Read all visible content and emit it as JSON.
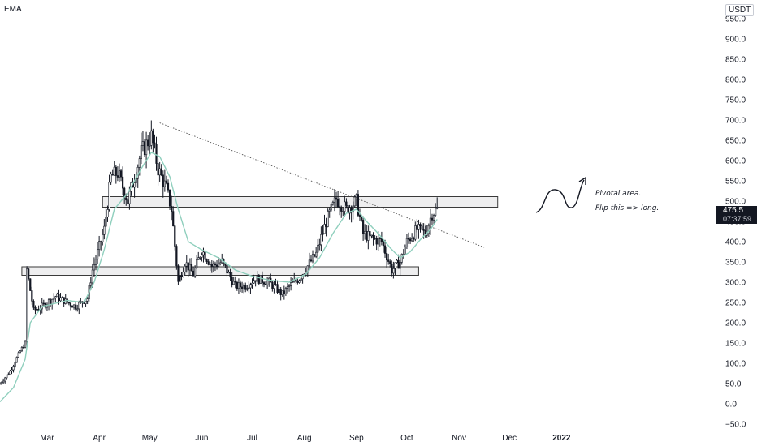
{
  "indicator": "EMA",
  "currency": "USDT",
  "last_price": {
    "value": "475.5",
    "countdown": "07:37:59"
  },
  "annotations": {
    "line1": "Pivotal area.",
    "line2": "Flip this => long."
  },
  "colors": {
    "up": "#131722",
    "down": "#131722",
    "ema": "#8fcfbd",
    "zone_fill": "#e8e8ea",
    "zone_stroke": "#3a3a3a",
    "trendline": "#555555"
  },
  "chart_data": {
    "type": "candlestick",
    "ylim": [
      -60,
      980
    ],
    "y_ticks": [
      "950.0",
      "900.0",
      "850.0",
      "800.0",
      "750.0",
      "700.0",
      "650.0",
      "600.0",
      "550.0",
      "500.0",
      "450.0",
      "400.0",
      "350.0",
      "300.0",
      "250.0",
      "200.0",
      "150.0",
      "100.0",
      "50.0",
      "0.0",
      "−50.0"
    ],
    "y_tick_values": [
      950,
      900,
      850,
      800,
      750,
      700,
      650,
      600,
      550,
      500,
      450,
      400,
      350,
      300,
      250,
      200,
      150,
      100,
      50,
      0,
      -50
    ],
    "x_ticks": [
      {
        "label": "Mar",
        "day": 28
      },
      {
        "label": "Apr",
        "day": 59
      },
      {
        "label": "May",
        "day": 89
      },
      {
        "label": "Jun",
        "day": 120
      },
      {
        "label": "Jul",
        "day": 150
      },
      {
        "label": "Aug",
        "day": 181
      },
      {
        "label": "Sep",
        "day": 212
      },
      {
        "label": "Oct",
        "day": 242
      },
      {
        "label": "Nov",
        "day": 273
      },
      {
        "label": "Dec",
        "day": 303
      },
      {
        "label": "2022",
        "day": 334
      }
    ],
    "x_range": [
      0,
      359
    ],
    "price_keyframes": [
      [
        0,
        50
      ],
      [
        6,
        80
      ],
      [
        12,
        130
      ],
      [
        15,
        150
      ],
      [
        16,
        330
      ],
      [
        20,
        230
      ],
      [
        25,
        240
      ],
      [
        33,
        265
      ],
      [
        45,
        240
      ],
      [
        52,
        260
      ],
      [
        55,
        330
      ],
      [
        62,
        430
      ],
      [
        66,
        560
      ],
      [
        70,
        570
      ],
      [
        76,
        500
      ],
      [
        84,
        620
      ],
      [
        90,
        660
      ],
      [
        94,
        580
      ],
      [
        99,
        530
      ],
      [
        102,
        480
      ],
      [
        106,
        300
      ],
      [
        110,
        350
      ],
      [
        115,
        320
      ],
      [
        120,
        380
      ],
      [
        126,
        340
      ],
      [
        132,
        350
      ],
      [
        140,
        290
      ],
      [
        146,
        290
      ],
      [
        152,
        310
      ],
      [
        160,
        300
      ],
      [
        168,
        270
      ],
      [
        172,
        290
      ],
      [
        178,
        310
      ],
      [
        188,
        370
      ],
      [
        194,
        450
      ],
      [
        200,
        505
      ],
      [
        206,
        480
      ],
      [
        212,
        500
      ],
      [
        216,
        420
      ],
      [
        220,
        410
      ],
      [
        227,
        400
      ],
      [
        233,
        330
      ],
      [
        238,
        350
      ],
      [
        242,
        400
      ],
      [
        248,
        430
      ],
      [
        253,
        420
      ],
      [
        257,
        470
      ],
      [
        260,
        480
      ]
    ],
    "ema_keyframes": [
      [
        0,
        5
      ],
      [
        8,
        40
      ],
      [
        15,
        110
      ],
      [
        18,
        200
      ],
      [
        25,
        240
      ],
      [
        40,
        255
      ],
      [
        50,
        250
      ],
      [
        56,
        300
      ],
      [
        62,
        380
      ],
      [
        68,
        480
      ],
      [
        76,
        520
      ],
      [
        84,
        580
      ],
      [
        90,
        620
      ],
      [
        95,
        610
      ],
      [
        101,
        560
      ],
      [
        106,
        480
      ],
      [
        112,
        400
      ],
      [
        120,
        380
      ],
      [
        130,
        360
      ],
      [
        140,
        330
      ],
      [
        150,
        315
      ],
      [
        160,
        305
      ],
      [
        172,
        300
      ],
      [
        182,
        320
      ],
      [
        190,
        360
      ],
      [
        198,
        420
      ],
      [
        206,
        470
      ],
      [
        212,
        480
      ],
      [
        218,
        450
      ],
      [
        225,
        420
      ],
      [
        232,
        385
      ],
      [
        238,
        360
      ],
      [
        244,
        375
      ],
      [
        250,
        405
      ],
      [
        256,
        430
      ],
      [
        260,
        455
      ]
    ],
    "zones": [
      {
        "y_low": 485,
        "y_high": 511,
        "x_start": 61,
        "x_end": 296
      },
      {
        "y_low": 317,
        "y_high": 338,
        "x_start": 13,
        "x_end": 249
      }
    ],
    "trendline": {
      "x0": 95,
      "y0": 693,
      "x1": 288,
      "y1": 386
    }
  }
}
